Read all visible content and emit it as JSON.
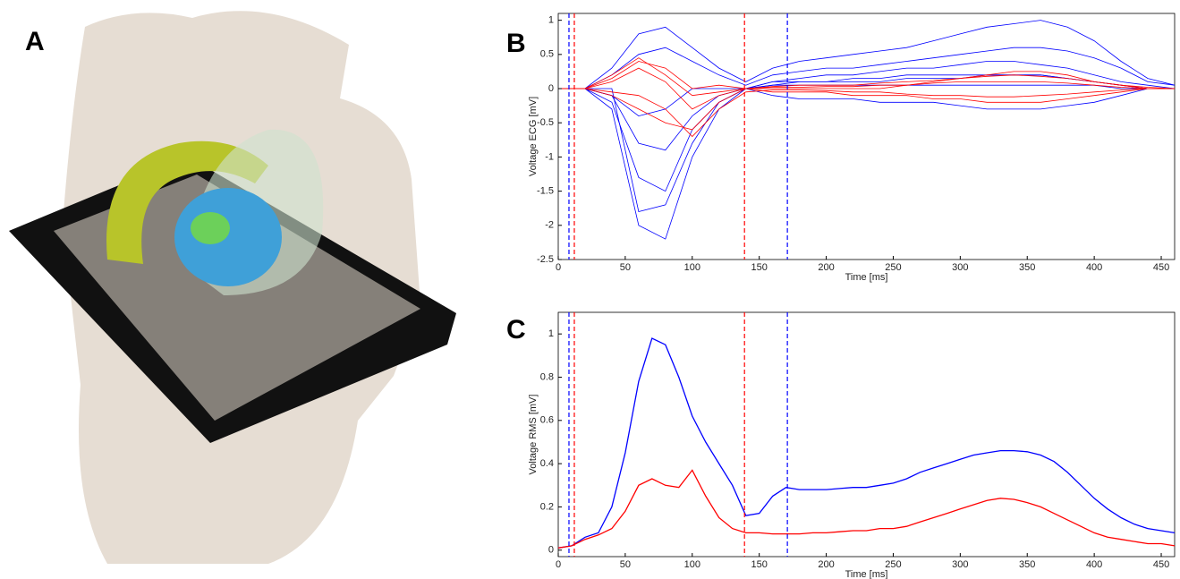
{
  "panel_a": {
    "label": "A"
  },
  "chart_data": [
    {
      "type": "line",
      "panel": "B",
      "x_label": "Time [ms]",
      "y_label": "Voltage ECG [mV]",
      "xlim": [
        0,
        460
      ],
      "xticks": [
        0,
        50,
        100,
        150,
        200,
        250,
        300,
        350,
        400,
        450
      ],
      "ylim": [
        -2.5,
        1.1
      ],
      "yticks": [
        -2.5,
        -2,
        -1.5,
        -1,
        -0.5,
        0,
        0.5,
        1
      ],
      "x": [
        0,
        20,
        40,
        60,
        80,
        100,
        120,
        140,
        160,
        180,
        200,
        220,
        240,
        260,
        280,
        300,
        320,
        340,
        360,
        380,
        400,
        420,
        440,
        460
      ],
      "vlines": [
        {
          "x": 8,
          "color": "#0000ff"
        },
        {
          "x": 12,
          "color": "#ff0000"
        },
        {
          "x": 139,
          "color": "#ff0000"
        },
        {
          "x": 171,
          "color": "#0000ff"
        }
      ],
      "series": [
        {
          "color": "#0000ff",
          "values": [
            0,
            0,
            -0.3,
            -2.0,
            -2.2,
            -1.0,
            -0.3,
            0,
            0.1,
            0.15,
            0.2,
            0.2,
            0.25,
            0.3,
            0.3,
            0.35,
            0.4,
            0.4,
            0.35,
            0.3,
            0.2,
            0.1,
            0.05,
            0
          ]
        },
        {
          "color": "#0000ff",
          "values": [
            0,
            0,
            -0.2,
            -1.3,
            -1.5,
            -0.6,
            -0.2,
            0,
            0.1,
            0.1,
            0.1,
            0.15,
            0.15,
            0.2,
            0.2,
            0.2,
            0.2,
            0.2,
            0.2,
            0.15,
            0.1,
            0.05,
            0,
            0
          ]
        },
        {
          "color": "#0000ff",
          "values": [
            0,
            0,
            -0.1,
            -0.8,
            -0.9,
            -0.4,
            -0.1,
            0,
            0.05,
            0.05,
            0.05,
            0.05,
            0.05,
            0.05,
            0.05,
            0.05,
            0.05,
            0.05,
            0.05,
            0.05,
            0.05,
            0,
            0,
            0
          ]
        },
        {
          "color": "#0000ff",
          "values": [
            0,
            0,
            0.3,
            0.8,
            0.9,
            0.6,
            0.3,
            0.1,
            0.3,
            0.4,
            0.45,
            0.5,
            0.55,
            0.6,
            0.7,
            0.8,
            0.9,
            0.95,
            1.0,
            0.9,
            0.7,
            0.4,
            0.15,
            0.05
          ]
        },
        {
          "color": "#0000ff",
          "values": [
            0,
            0,
            0.2,
            0.5,
            0.6,
            0.4,
            0.2,
            0.05,
            0.2,
            0.25,
            0.3,
            0.3,
            0.35,
            0.4,
            0.45,
            0.5,
            0.55,
            0.6,
            0.6,
            0.55,
            0.45,
            0.3,
            0.1,
            0.05
          ]
        },
        {
          "color": "#0000ff",
          "values": [
            0,
            0,
            -0.1,
            -0.4,
            -0.3,
            0.0,
            0.0,
            0,
            -0.1,
            -0.15,
            -0.15,
            -0.15,
            -0.2,
            -0.2,
            -0.2,
            -0.25,
            -0.3,
            -0.3,
            -0.3,
            -0.25,
            -0.2,
            -0.1,
            0,
            0
          ]
        },
        {
          "color": "#0000ff",
          "values": [
            0,
            0,
            0,
            -1.8,
            -1.7,
            -0.8,
            -0.2,
            0,
            0.05,
            0.1,
            0.1,
            0.1,
            0.1,
            0.15,
            0.15,
            0.15,
            0.2,
            0.2,
            0.2,
            0.15,
            0.1,
            0.05,
            0,
            0
          ]
        },
        {
          "color": "#ff0000",
          "values": [
            0,
            0,
            0.2,
            0.45,
            0.2,
            -0.1,
            -0.05,
            0,
            0,
            0,
            0,
            0,
            0,
            0.05,
            0.1,
            0.15,
            0.2,
            0.25,
            0.25,
            0.2,
            0.1,
            0.05,
            0,
            0
          ]
        },
        {
          "color": "#ff0000",
          "values": [
            0,
            0,
            -0.1,
            -0.3,
            -0.5,
            -0.6,
            -0.2,
            0,
            -0.05,
            -0.05,
            -0.05,
            -0.1,
            -0.1,
            -0.1,
            -0.15,
            -0.15,
            -0.2,
            -0.2,
            -0.2,
            -0.15,
            -0.1,
            -0.05,
            0,
            0
          ]
        },
        {
          "color": "#ff0000",
          "values": [
            0,
            0,
            0.1,
            0.3,
            0.1,
            -0.3,
            -0.1,
            0,
            0.02,
            0.02,
            0.03,
            0.03,
            0.05,
            0.05,
            0.08,
            0.1,
            0.1,
            0.1,
            0.1,
            0.08,
            0.05,
            0.02,
            0,
            0
          ]
        },
        {
          "color": "#ff0000",
          "values": [
            0,
            0,
            -0.05,
            -0.1,
            -0.3,
            -0.7,
            -0.3,
            -0.05,
            -0.02,
            -0.02,
            -0.03,
            -0.05,
            -0.05,
            -0.08,
            -0.1,
            -0.1,
            -0.12,
            -0.12,
            -0.1,
            -0.08,
            -0.05,
            -0.02,
            0,
            0
          ]
        },
        {
          "color": "#ff0000",
          "values": [
            0,
            0,
            0.15,
            0.4,
            0.3,
            0.0,
            0.05,
            0,
            0.03,
            0.05,
            0.05,
            0.05,
            0.08,
            0.1,
            0.12,
            0.15,
            0.18,
            0.2,
            0.18,
            0.15,
            0.1,
            0.05,
            0.02,
            0
          ]
        }
      ]
    },
    {
      "type": "line",
      "panel": "C",
      "x_label": "Time [ms]",
      "y_label": "Voltage RMS [mV]",
      "xlim": [
        0,
        460
      ],
      "xticks": [
        0,
        50,
        100,
        150,
        200,
        250,
        300,
        350,
        400,
        450
      ],
      "ylim": [
        -0.03,
        1.1
      ],
      "yticks": [
        0,
        0.2,
        0.4,
        0.6,
        0.8,
        1
      ],
      "x": [
        0,
        10,
        20,
        30,
        40,
        50,
        60,
        70,
        80,
        90,
        100,
        110,
        120,
        130,
        140,
        150,
        160,
        170,
        180,
        190,
        200,
        210,
        220,
        230,
        240,
        250,
        260,
        270,
        280,
        290,
        300,
        310,
        320,
        330,
        340,
        350,
        360,
        370,
        380,
        390,
        400,
        410,
        420,
        430,
        440,
        450,
        460
      ],
      "vlines": [
        {
          "x": 8,
          "color": "#0000ff"
        },
        {
          "x": 12,
          "color": "#ff0000"
        },
        {
          "x": 139,
          "color": "#ff0000"
        },
        {
          "x": 171,
          "color": "#0000ff"
        }
      ],
      "series": [
        {
          "color": "#0000ff",
          "values": [
            0.01,
            0.02,
            0.06,
            0.08,
            0.2,
            0.45,
            0.78,
            0.98,
            0.95,
            0.8,
            0.62,
            0.5,
            0.4,
            0.3,
            0.16,
            0.17,
            0.25,
            0.29,
            0.28,
            0.28,
            0.28,
            0.285,
            0.29,
            0.29,
            0.3,
            0.31,
            0.33,
            0.36,
            0.38,
            0.4,
            0.42,
            0.44,
            0.45,
            0.46,
            0.46,
            0.455,
            0.44,
            0.41,
            0.36,
            0.3,
            0.24,
            0.19,
            0.15,
            0.12,
            0.1,
            0.09,
            0.08
          ]
        },
        {
          "color": "#ff0000",
          "values": [
            0.01,
            0.02,
            0.05,
            0.07,
            0.1,
            0.18,
            0.3,
            0.33,
            0.3,
            0.29,
            0.37,
            0.25,
            0.15,
            0.1,
            0.08,
            0.08,
            0.075,
            0.075,
            0.075,
            0.08,
            0.08,
            0.085,
            0.09,
            0.09,
            0.1,
            0.1,
            0.11,
            0.13,
            0.15,
            0.17,
            0.19,
            0.21,
            0.23,
            0.24,
            0.235,
            0.22,
            0.2,
            0.17,
            0.14,
            0.11,
            0.08,
            0.06,
            0.05,
            0.04,
            0.03,
            0.03,
            0.02
          ]
        }
      ]
    }
  ]
}
